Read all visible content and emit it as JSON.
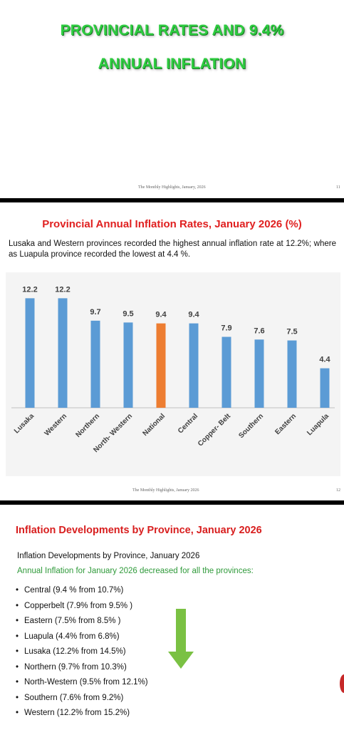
{
  "slide1": {
    "title_line1": "PROVINCIAL RATES AND 9.4%",
    "title_line2": "ANNUAL INFLATION",
    "footer": "The Monthly Highlights, January, 2026",
    "page_number": "11"
  },
  "slide2": {
    "title": "Provincial Annual Inflation Rates, January 2026 (%)",
    "description": "Lusaka and Western provinces recorded the highest annual inflation rate at 12.2%; where as Luapula province recorded the lowest at 4.4 %.",
    "footer": "The Monthly Highlights, January 2026",
    "page_number": "12"
  },
  "chart_data": {
    "type": "bar",
    "categories": [
      "Lusaka",
      "Western",
      "Northern",
      "North- Western",
      "National",
      "Central",
      "Copper- Belt",
      "Southern",
      "Eastern",
      "Luapula"
    ],
    "values": [
      12.2,
      12.2,
      9.7,
      9.5,
      9.4,
      9.4,
      7.9,
      7.6,
      7.5,
      4.4
    ],
    "data_labels": [
      "12.2",
      "12.2",
      "9.7",
      "9.5",
      "9.4",
      "9.4",
      "7.9",
      "7.6",
      "7.5",
      "4.4"
    ],
    "highlight_category": "National",
    "colors": {
      "bar": "#5b9bd5",
      "highlight": "#ed7d31"
    },
    "ylim": [
      0,
      13.5
    ],
    "grid": false,
    "legend": "none"
  },
  "slide3": {
    "title": "Inflation Developments by Province, January 2026",
    "subtitle": "Inflation Developments by Province, January 2026",
    "note": "Annual Inflation for January 2026 decreased for all the provinces:",
    "items": [
      "Central (9.4 % from 10.7%)",
      "Copperbelt (7.9% from 9.5% )",
      "Eastern (7.5% from 8.5% )",
      "Luapula (4.4% from 6.8%)",
      "Lusaka (12.2% from 14.5%)",
      "Northern (9.7% from 10.3%)",
      "North-Western (9.5% from 12.1%)",
      "Southern (7.6% from 9.2%)",
      "Western (12.2% from 15.2%)"
    ],
    "arrow_icon": "down-arrow-icon",
    "arrow_color": "#7ac143"
  }
}
